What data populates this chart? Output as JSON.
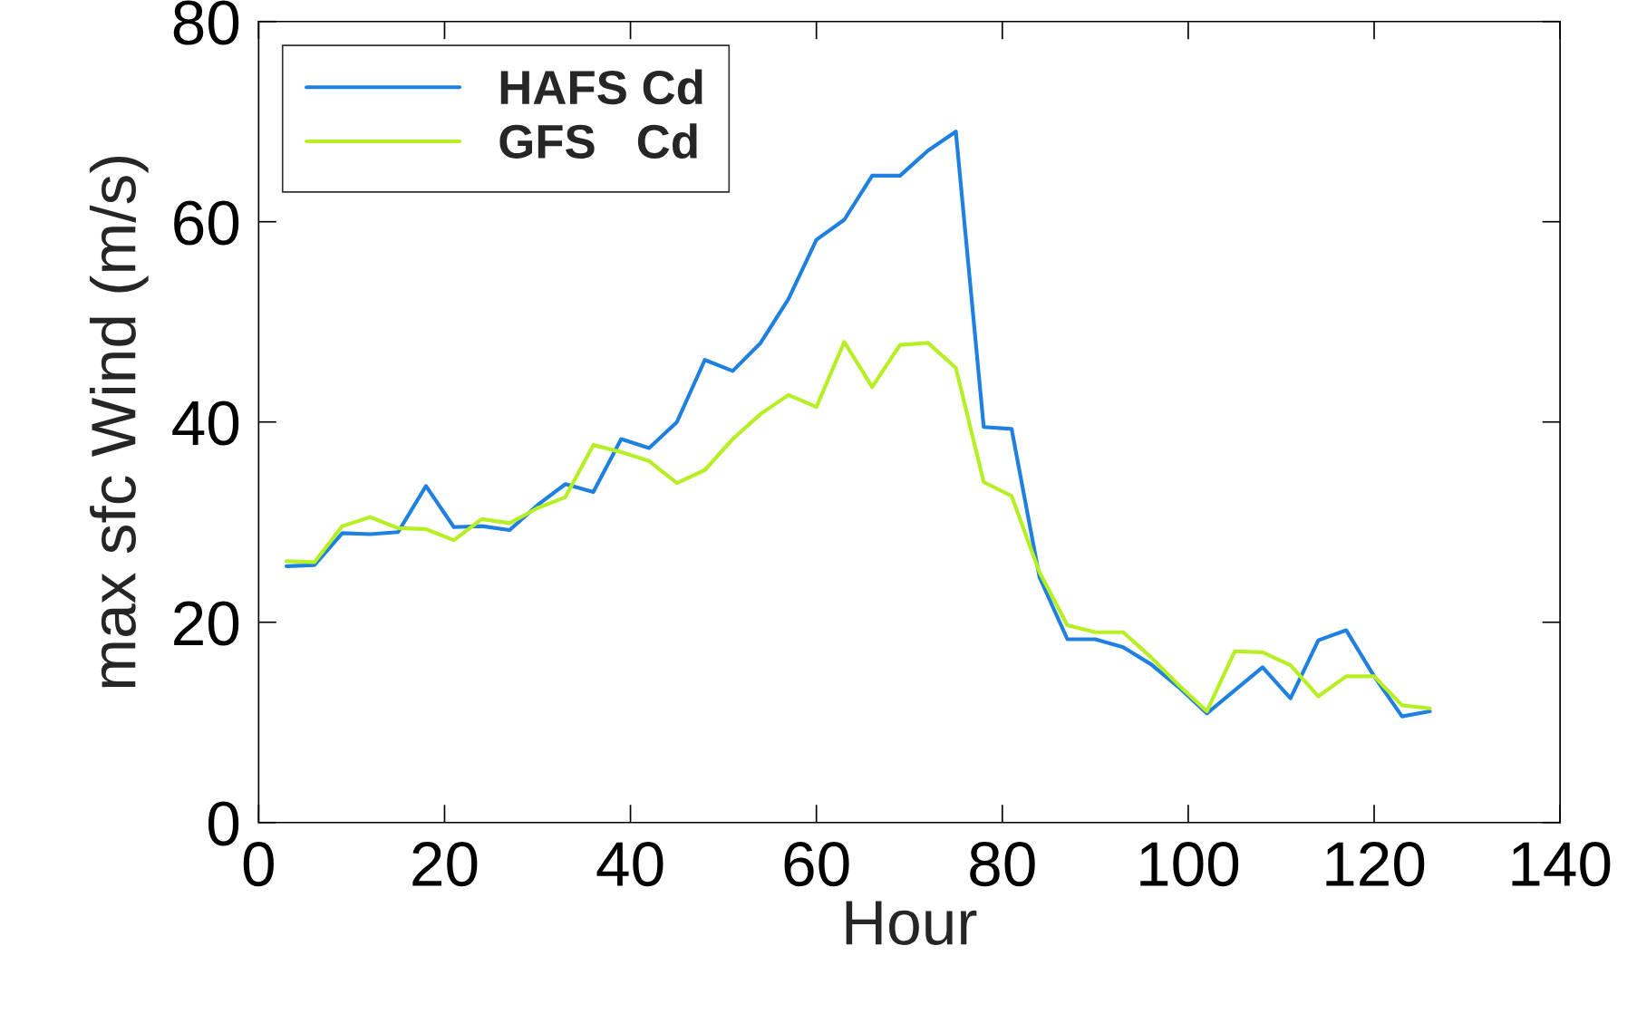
{
  "chart_data": {
    "type": "line",
    "xlabel": "Hour",
    "ylabel": "max sfc Wind (m/s)",
    "x": [
      3,
      6,
      9,
      12,
      15,
      18,
      21,
      24,
      27,
      30,
      33,
      36,
      39,
      42,
      45,
      48,
      51,
      54,
      57,
      60,
      63,
      66,
      69,
      72,
      75,
      78,
      81,
      84,
      87,
      90,
      93,
      96,
      99,
      102,
      105,
      108,
      111,
      114,
      117,
      120,
      123,
      126
    ],
    "series": [
      {
        "name": "HAFS Cd",
        "color": "#1f80e0",
        "values": [
          25.6,
          25.7,
          28.9,
          28.8,
          29.0,
          33.6,
          29.5,
          29.6,
          29.2,
          31.7,
          33.8,
          33.0,
          38.3,
          37.4,
          40.0,
          46.2,
          45.1,
          47.9,
          52.3,
          58.2,
          60.2,
          64.6,
          64.6,
          67.1,
          69.0,
          39.5,
          39.3,
          24.5,
          18.3,
          18.3,
          17.5,
          15.8,
          13.5,
          10.9,
          13.2,
          15.5,
          12.4,
          18.2,
          19.2,
          14.6,
          10.6,
          11.1
        ]
      },
      {
        "name": "GFS   Cd",
        "color": "#b6ef24",
        "values": [
          26.1,
          26.0,
          29.6,
          30.5,
          29.4,
          29.3,
          28.2,
          30.3,
          29.9,
          31.4,
          32.5,
          37.7,
          37.0,
          36.1,
          33.9,
          35.2,
          38.3,
          40.8,
          42.7,
          41.5,
          48.0,
          43.5,
          47.7,
          47.9,
          45.4,
          34.0,
          32.6,
          25.0,
          19.7,
          19.0,
          19.0,
          16.5,
          13.7,
          11.1,
          17.1,
          17.0,
          15.7,
          12.6,
          14.6,
          14.6,
          11.7,
          11.4
        ]
      }
    ],
    "xlim": [
      0,
      140
    ],
    "xticks": [
      0,
      20,
      40,
      60,
      80,
      100,
      120,
      140
    ],
    "ylim": [
      0,
      80
    ],
    "yticks": [
      0,
      20,
      40,
      60,
      80
    ],
    "legend": "top left",
    "grid": false,
    "marker": "none",
    "line_style": "solid"
  }
}
